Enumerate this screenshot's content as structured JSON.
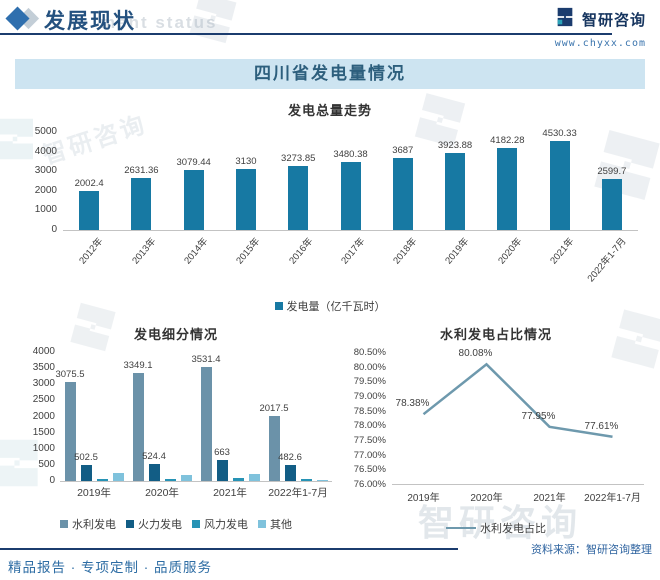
{
  "header": {
    "section_title": "发展现状",
    "watermark_text": "ment status",
    "brand_name": "智研咨询",
    "brand_url": "www.chyxx.com"
  },
  "banner": {
    "title": "四川省发电量情况"
  },
  "footer": {
    "services": "精品报告 · 专项定制 · 品质服务",
    "source": "资料来源：智研咨询整理"
  },
  "watermark_brand": "智研咨询",
  "colors": {
    "navy": "#1b3c6e",
    "bar": "#1779a3",
    "hydro": "#6b92a9",
    "thermal": "#125d85",
    "wind": "#2793b5",
    "other": "#7fc2dc",
    "line": "#6e99ad",
    "band_bg": "#cde4f1"
  },
  "chart_data": [
    {
      "type": "bar",
      "title": "发电总量走势",
      "categories": [
        "2012年",
        "2013年",
        "2014年",
        "2015年",
        "2016年",
        "2017年",
        "2018年",
        "2019年",
        "2020年",
        "2021年",
        "2022年1-7月"
      ],
      "values": [
        2002.4,
        2631.36,
        3079.44,
        3130,
        3273.85,
        3480.38,
        3687,
        3923.88,
        4182.28,
        4530.33,
        2599.7
      ],
      "legend": [
        "发电量（亿千瓦时）"
      ],
      "xlabel": "",
      "ylabel": "",
      "ylim": [
        0,
        5000
      ],
      "ytick_step": 1000,
      "grid": false,
      "legend_position": "bottom"
    },
    {
      "type": "bar",
      "title": "发电细分情况",
      "categories": [
        "2019年",
        "2020年",
        "2021年",
        "2022年1-7月"
      ],
      "series": [
        {
          "name": "水利发电",
          "values": [
            3075.5,
            3349.1,
            3531.4,
            2017.5
          ],
          "labeled": true
        },
        {
          "name": "火力发电",
          "values": [
            502.5,
            524.4,
            663,
            482.6
          ],
          "labeled": true
        },
        {
          "name": "风力发电",
          "values": [
            60,
            75,
            95,
            65
          ],
          "labeled": false
        },
        {
          "name": "其他",
          "values": [
            245,
            200,
            230,
            30
          ],
          "labeled": false
        }
      ],
      "xlabel": "",
      "ylabel": "",
      "ylim": [
        0,
        4000
      ],
      "ytick_step": 500,
      "grid": false,
      "legend_position": "bottom",
      "note": "风力发电/其他 values estimated from gridlines (unlabeled in source)"
    },
    {
      "type": "line",
      "title": "水利发电占比情况",
      "categories": [
        "2019年",
        "2020年",
        "2021年",
        "2022年1-7月"
      ],
      "values": [
        78.38,
        80.08,
        77.95,
        77.61
      ],
      "point_labels": [
        "78.38%",
        "80.08%",
        "77.95%",
        "77.61%"
      ],
      "legend": [
        "水利发电占比"
      ],
      "xlabel": "",
      "ylabel": "",
      "ylim": [
        76.0,
        80.5
      ],
      "ytick_step": 0.5,
      "ytick_format": "percent2",
      "grid": false,
      "legend_position": "bottom"
    }
  ]
}
